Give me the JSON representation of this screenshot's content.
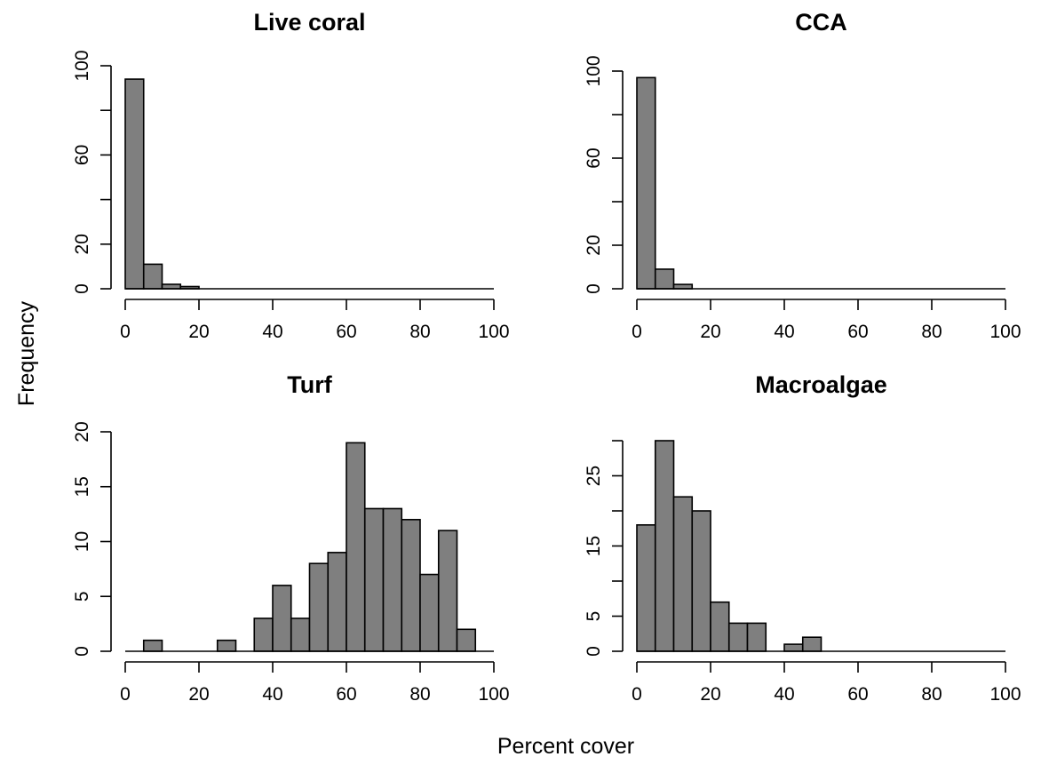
{
  "labels": {
    "y_axis_title": "Frequency",
    "x_axis_title": "Percent cover"
  },
  "chart_data": [
    {
      "type": "bar",
      "title": "Live coral",
      "bin_width": 5,
      "bin_start": 0,
      "values": [
        94,
        11,
        2,
        1,
        0,
        0,
        0,
        0,
        0,
        0,
        0,
        0,
        0,
        0,
        0,
        0,
        0,
        0,
        0,
        0
      ],
      "xlim": [
        0,
        100
      ],
      "ylim": [
        0,
        100
      ],
      "x_ticks": [
        0,
        20,
        40,
        60,
        80,
        100
      ],
      "y_ticks": [
        0,
        20,
        40,
        60,
        80,
        100
      ],
      "y_tick_labels": [
        "0",
        "20",
        "",
        "60",
        "",
        "100"
      ]
    },
    {
      "type": "bar",
      "title": "CCA",
      "bin_width": 5,
      "bin_start": 0,
      "values": [
        97,
        9,
        2,
        0,
        0,
        0,
        0,
        0,
        0,
        0,
        0,
        0,
        0,
        0,
        0,
        0,
        0,
        0,
        0,
        0
      ],
      "xlim": [
        0,
        100
      ],
      "ylim": [
        0,
        100
      ],
      "x_ticks": [
        0,
        20,
        40,
        60,
        80,
        100
      ],
      "y_ticks": [
        0,
        20,
        40,
        60,
        80,
        100
      ],
      "y_tick_labels": [
        "0",
        "20",
        "",
        "60",
        "",
        "100"
      ]
    },
    {
      "type": "bar",
      "title": "Turf",
      "bin_width": 5,
      "bin_start": 0,
      "values": [
        0,
        1,
        0,
        0,
        0,
        1,
        0,
        3,
        6,
        3,
        8,
        9,
        19,
        13,
        13,
        12,
        7,
        11,
        2,
        0
      ],
      "xlim": [
        0,
        100
      ],
      "ylim": [
        0,
        20
      ],
      "x_ticks": [
        0,
        20,
        40,
        60,
        80,
        100
      ],
      "y_ticks": [
        0,
        5,
        10,
        15,
        20
      ],
      "y_tick_labels": [
        "0",
        "5",
        "10",
        "15",
        "20"
      ]
    },
    {
      "type": "bar",
      "title": "Macroalgae",
      "bin_width": 5,
      "bin_start": 0,
      "values": [
        18,
        30,
        22,
        20,
        7,
        4,
        4,
        0,
        1,
        2,
        0,
        0,
        0,
        0,
        0,
        0,
        0,
        0,
        0,
        0
      ],
      "xlim": [
        0,
        100
      ],
      "ylim": [
        0,
        30
      ],
      "x_ticks": [
        0,
        20,
        40,
        60,
        80,
        100
      ],
      "y_ticks": [
        0,
        5,
        10,
        15,
        20,
        25,
        30
      ],
      "y_tick_labels": [
        "0",
        "5",
        "",
        "15",
        "",
        "25",
        ""
      ]
    }
  ]
}
